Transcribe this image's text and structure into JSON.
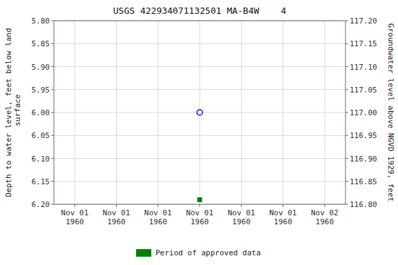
{
  "chart_data": {
    "type": "scatter",
    "title": "USGS 422934071132501 MA-B4W    4",
    "y_label": "Depth to water level, feet below land\n surface",
    "y2_label": "Groundwater level above NGVD 1929, feet",
    "categories": [
      "Nov 01\n1960",
      "Nov 01\n1960",
      "Nov 01\n1960",
      "Nov 01\n1960",
      "Nov 01\n1960",
      "Nov 01\n1960",
      "Nov 02\n1960"
    ],
    "series": [
      {
        "color": "#0000ff",
        "marker": "open-circle",
        "values": [
          null,
          null,
          null,
          6.0,
          null,
          null,
          null
        ]
      },
      {
        "name": "Period of approved data",
        "color": "#008000",
        "marker": "square",
        "values": [
          null,
          null,
          null,
          6.19,
          null,
          null,
          null
        ]
      }
    ],
    "ylim": [
      6.2,
      5.8
    ],
    "yticks": [
      {
        "value": 5.8,
        "label": "5.80"
      },
      {
        "value": 5.85,
        "label": "5.85"
      },
      {
        "value": 5.9,
        "label": "5.90"
      },
      {
        "value": 5.95,
        "label": "5.95"
      },
      {
        "value": 6.0,
        "label": "6.00"
      },
      {
        "value": 6.05,
        "label": "6.05"
      },
      {
        "value": 6.1,
        "label": "6.10"
      },
      {
        "value": 6.15,
        "label": "6.15"
      },
      {
        "value": 6.2,
        "label": "6.20"
      }
    ],
    "y2lim": [
      116.8,
      117.2
    ],
    "y2ticks": [
      {
        "value": 117.2,
        "label": "117.20"
      },
      {
        "value": 117.15,
        "label": "117.15"
      },
      {
        "value": 117.1,
        "label": "117.10"
      },
      {
        "value": 117.05,
        "label": "117.05"
      },
      {
        "value": 117.0,
        "label": "117.00"
      },
      {
        "value": 116.95,
        "label": "116.95"
      },
      {
        "value": 116.9,
        "label": "116.90"
      },
      {
        "value": 116.85,
        "label": "116.85"
      },
      {
        "value": 116.8,
        "label": "116.80"
      }
    ],
    "grid": true,
    "legend": "bottom"
  }
}
